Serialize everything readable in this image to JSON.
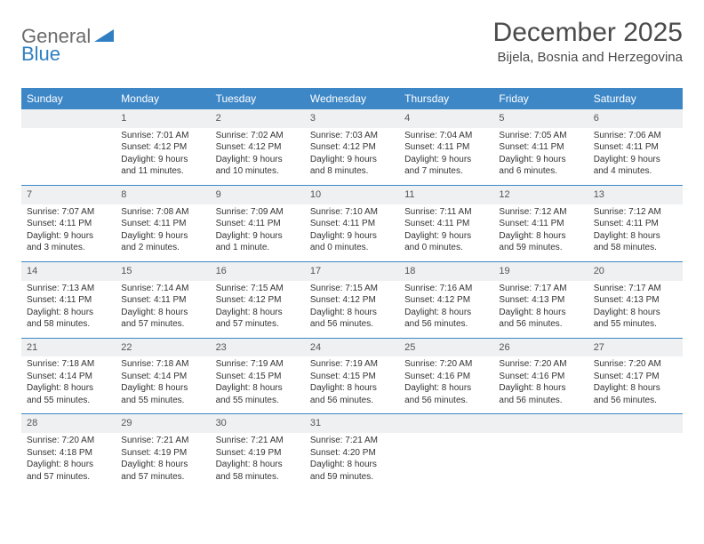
{
  "brand": {
    "part1": "General",
    "part2": "Blue"
  },
  "title": "December 2025",
  "location": "Bijela, Bosnia and Herzegovina",
  "colors": {
    "header_bg": "#3d87c7",
    "daynum_bg": "#eef0f1",
    "row_border": "#3d87c7"
  },
  "day_headers": [
    "Sunday",
    "Monday",
    "Tuesday",
    "Wednesday",
    "Thursday",
    "Friday",
    "Saturday"
  ],
  "weeks": [
    [
      null,
      {
        "n": "1",
        "sr": "Sunrise: 7:01 AM",
        "ss": "Sunset: 4:12 PM",
        "dl": "Daylight: 9 hours and 11 minutes."
      },
      {
        "n": "2",
        "sr": "Sunrise: 7:02 AM",
        "ss": "Sunset: 4:12 PM",
        "dl": "Daylight: 9 hours and 10 minutes."
      },
      {
        "n": "3",
        "sr": "Sunrise: 7:03 AM",
        "ss": "Sunset: 4:12 PM",
        "dl": "Daylight: 9 hours and 8 minutes."
      },
      {
        "n": "4",
        "sr": "Sunrise: 7:04 AM",
        "ss": "Sunset: 4:11 PM",
        "dl": "Daylight: 9 hours and 7 minutes."
      },
      {
        "n": "5",
        "sr": "Sunrise: 7:05 AM",
        "ss": "Sunset: 4:11 PM",
        "dl": "Daylight: 9 hours and 6 minutes."
      },
      {
        "n": "6",
        "sr": "Sunrise: 7:06 AM",
        "ss": "Sunset: 4:11 PM",
        "dl": "Daylight: 9 hours and 4 minutes."
      }
    ],
    [
      {
        "n": "7",
        "sr": "Sunrise: 7:07 AM",
        "ss": "Sunset: 4:11 PM",
        "dl": "Daylight: 9 hours and 3 minutes."
      },
      {
        "n": "8",
        "sr": "Sunrise: 7:08 AM",
        "ss": "Sunset: 4:11 PM",
        "dl": "Daylight: 9 hours and 2 minutes."
      },
      {
        "n": "9",
        "sr": "Sunrise: 7:09 AM",
        "ss": "Sunset: 4:11 PM",
        "dl": "Daylight: 9 hours and 1 minute."
      },
      {
        "n": "10",
        "sr": "Sunrise: 7:10 AM",
        "ss": "Sunset: 4:11 PM",
        "dl": "Daylight: 9 hours and 0 minutes."
      },
      {
        "n": "11",
        "sr": "Sunrise: 7:11 AM",
        "ss": "Sunset: 4:11 PM",
        "dl": "Daylight: 9 hours and 0 minutes."
      },
      {
        "n": "12",
        "sr": "Sunrise: 7:12 AM",
        "ss": "Sunset: 4:11 PM",
        "dl": "Daylight: 8 hours and 59 minutes."
      },
      {
        "n": "13",
        "sr": "Sunrise: 7:12 AM",
        "ss": "Sunset: 4:11 PM",
        "dl": "Daylight: 8 hours and 58 minutes."
      }
    ],
    [
      {
        "n": "14",
        "sr": "Sunrise: 7:13 AM",
        "ss": "Sunset: 4:11 PM",
        "dl": "Daylight: 8 hours and 58 minutes."
      },
      {
        "n": "15",
        "sr": "Sunrise: 7:14 AM",
        "ss": "Sunset: 4:11 PM",
        "dl": "Daylight: 8 hours and 57 minutes."
      },
      {
        "n": "16",
        "sr": "Sunrise: 7:15 AM",
        "ss": "Sunset: 4:12 PM",
        "dl": "Daylight: 8 hours and 57 minutes."
      },
      {
        "n": "17",
        "sr": "Sunrise: 7:15 AM",
        "ss": "Sunset: 4:12 PM",
        "dl": "Daylight: 8 hours and 56 minutes."
      },
      {
        "n": "18",
        "sr": "Sunrise: 7:16 AM",
        "ss": "Sunset: 4:12 PM",
        "dl": "Daylight: 8 hours and 56 minutes."
      },
      {
        "n": "19",
        "sr": "Sunrise: 7:17 AM",
        "ss": "Sunset: 4:13 PM",
        "dl": "Daylight: 8 hours and 56 minutes."
      },
      {
        "n": "20",
        "sr": "Sunrise: 7:17 AM",
        "ss": "Sunset: 4:13 PM",
        "dl": "Daylight: 8 hours and 55 minutes."
      }
    ],
    [
      {
        "n": "21",
        "sr": "Sunrise: 7:18 AM",
        "ss": "Sunset: 4:14 PM",
        "dl": "Daylight: 8 hours and 55 minutes."
      },
      {
        "n": "22",
        "sr": "Sunrise: 7:18 AM",
        "ss": "Sunset: 4:14 PM",
        "dl": "Daylight: 8 hours and 55 minutes."
      },
      {
        "n": "23",
        "sr": "Sunrise: 7:19 AM",
        "ss": "Sunset: 4:15 PM",
        "dl": "Daylight: 8 hours and 55 minutes."
      },
      {
        "n": "24",
        "sr": "Sunrise: 7:19 AM",
        "ss": "Sunset: 4:15 PM",
        "dl": "Daylight: 8 hours and 56 minutes."
      },
      {
        "n": "25",
        "sr": "Sunrise: 7:20 AM",
        "ss": "Sunset: 4:16 PM",
        "dl": "Daylight: 8 hours and 56 minutes."
      },
      {
        "n": "26",
        "sr": "Sunrise: 7:20 AM",
        "ss": "Sunset: 4:16 PM",
        "dl": "Daylight: 8 hours and 56 minutes."
      },
      {
        "n": "27",
        "sr": "Sunrise: 7:20 AM",
        "ss": "Sunset: 4:17 PM",
        "dl": "Daylight: 8 hours and 56 minutes."
      }
    ],
    [
      {
        "n": "28",
        "sr": "Sunrise: 7:20 AM",
        "ss": "Sunset: 4:18 PM",
        "dl": "Daylight: 8 hours and 57 minutes."
      },
      {
        "n": "29",
        "sr": "Sunrise: 7:21 AM",
        "ss": "Sunset: 4:19 PM",
        "dl": "Daylight: 8 hours and 57 minutes."
      },
      {
        "n": "30",
        "sr": "Sunrise: 7:21 AM",
        "ss": "Sunset: 4:19 PM",
        "dl": "Daylight: 8 hours and 58 minutes."
      },
      {
        "n": "31",
        "sr": "Sunrise: 7:21 AM",
        "ss": "Sunset: 4:20 PM",
        "dl": "Daylight: 8 hours and 59 minutes."
      },
      null,
      null,
      null
    ]
  ]
}
